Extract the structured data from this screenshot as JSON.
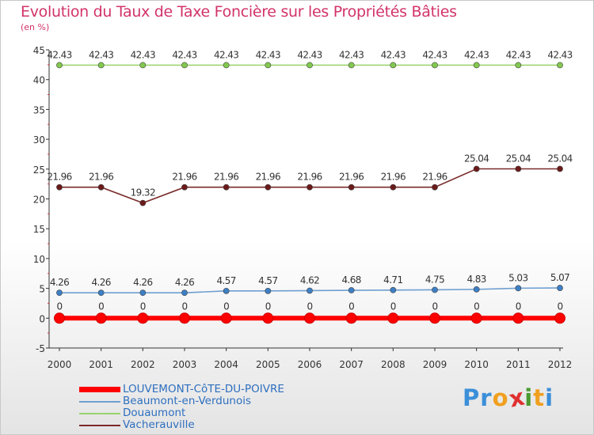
{
  "title": "Evolution du Taux de Taxe Foncière sur les Propriétés Bâties",
  "unit_label": "(en %)",
  "brand": {
    "letters": [
      "P",
      "r",
      "o",
      "x",
      "i",
      "t",
      "i"
    ],
    "colors": [
      "#3b8fd9",
      "#3b8fd9",
      "#f0a020",
      "#e03030",
      "#4a9a30",
      "#f0a020",
      "#3b8fd9"
    ]
  },
  "chart_data": {
    "type": "line",
    "title": "Evolution du Taux de Taxe Foncière sur les Propriétés Bâties",
    "ylabel": "(en %)",
    "x": [
      "2000",
      "2001",
      "2002",
      "2003",
      "2004",
      "2005",
      "2006",
      "2007",
      "2008",
      "2009",
      "2010",
      "2011",
      "2012"
    ],
    "ylim": [
      -5,
      45
    ],
    "yticks": [
      -5,
      0,
      5,
      10,
      15,
      20,
      25,
      30,
      35,
      40,
      45
    ],
    "grid": false,
    "legend_position": "bottom-left",
    "series": [
      {
        "name": "LOUVEMONT-CôTE-DU-POIVRE",
        "legend_label": "LOUVEMONT-CôTE-DU-POIVRE",
        "color": "#ff0000",
        "marker_color": "#ff0000",
        "values": [
          0,
          0,
          0,
          0,
          0,
          0,
          0,
          0,
          0,
          0,
          0,
          0,
          0
        ],
        "labels": [
          "0",
          "0",
          "0",
          "0",
          "0",
          "0",
          "0",
          "0",
          "0",
          "0",
          "0",
          "0",
          "0"
        ]
      },
      {
        "name": "Beaumont-en-Verdunois",
        "legend_label": "Beaumont-en-Verdunois",
        "color": "#6e9fd1",
        "marker_color": "#3d7fc4",
        "values": [
          4.26,
          4.26,
          4.26,
          4.26,
          4.57,
          4.57,
          4.62,
          4.68,
          4.71,
          4.75,
          4.83,
          5.03,
          5.07
        ],
        "labels": [
          "4.26",
          "4.26",
          "4.26",
          "4.26",
          "4.57",
          "4.57",
          "4.62",
          "4.68",
          "4.71",
          "4.75",
          "4.83",
          "5.03",
          "5.07"
        ]
      },
      {
        "name": "Douaumont",
        "legend_label": "Douaumont",
        "color": "#99d36a",
        "marker_color": "#82c94f",
        "values": [
          42.43,
          42.43,
          42.43,
          42.43,
          42.43,
          42.43,
          42.43,
          42.43,
          42.43,
          42.43,
          42.43,
          42.43,
          42.43
        ],
        "labels": [
          "42.43",
          "42.43",
          "42.43",
          "42.43",
          "42.43",
          "42.43",
          "42.43",
          "42.43",
          "42.43",
          "42.43",
          "42.43",
          "42.43",
          "42.43"
        ]
      },
      {
        "name": "Vacherauville",
        "legend_label": "Vacherauville",
        "color": "#7a2a2a",
        "marker_color": "#6b1a1a",
        "values": [
          21.96,
          21.96,
          19.32,
          21.96,
          21.96,
          21.96,
          21.96,
          21.96,
          21.96,
          21.96,
          25.04,
          25.04,
          25.04
        ],
        "labels": [
          "21.96",
          "21.96",
          "19.32",
          "21.96",
          "21.96",
          "21.96",
          "21.96",
          "21.96",
          "21.96",
          "21.96",
          "25.04",
          "25.04",
          "25.04"
        ]
      }
    ]
  }
}
